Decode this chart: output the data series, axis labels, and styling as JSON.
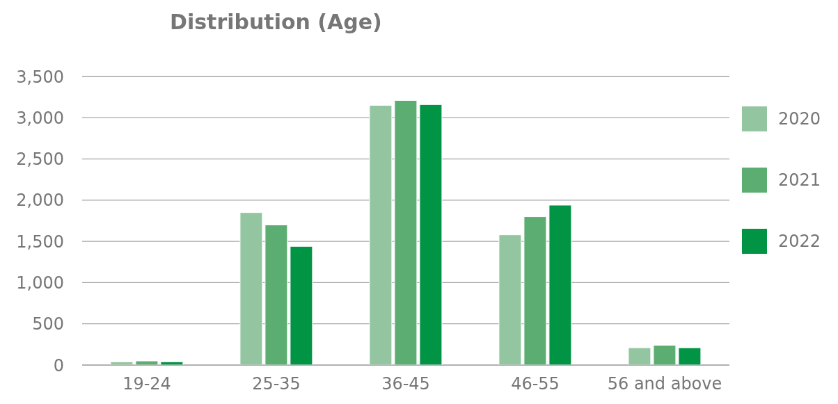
{
  "chart_data": {
    "type": "bar",
    "title": "Distribution (Age)",
    "categories": [
      "19-24",
      "25-35",
      "36-45",
      "46-55",
      "56 and above"
    ],
    "series": [
      {
        "name": "2020",
        "color": "#93c6a0",
        "values": [
          40,
          1850,
          3150,
          1580,
          210
        ]
      },
      {
        "name": "2021",
        "color": "#5cad72",
        "values": [
          50,
          1700,
          3210,
          1800,
          240
        ]
      },
      {
        "name": "2022",
        "color": "#009444",
        "values": [
          40,
          1440,
          3160,
          1940,
          210
        ]
      }
    ],
    "ylim": [
      0,
      3500
    ],
    "yticks": [
      0,
      500,
      {
        "value": 1000,
        "label": "1,000"
      },
      {
        "value": 1500,
        "label": "1,500"
      },
      {
        "value": 2000,
        "label": "2,000"
      },
      {
        "value": 2500,
        "label": "2,500"
      },
      {
        "value": 3000,
        "label": "3,000"
      },
      {
        "value": 3500,
        "label": "3,500"
      }
    ],
    "grid": "y",
    "legend": "right"
  }
}
